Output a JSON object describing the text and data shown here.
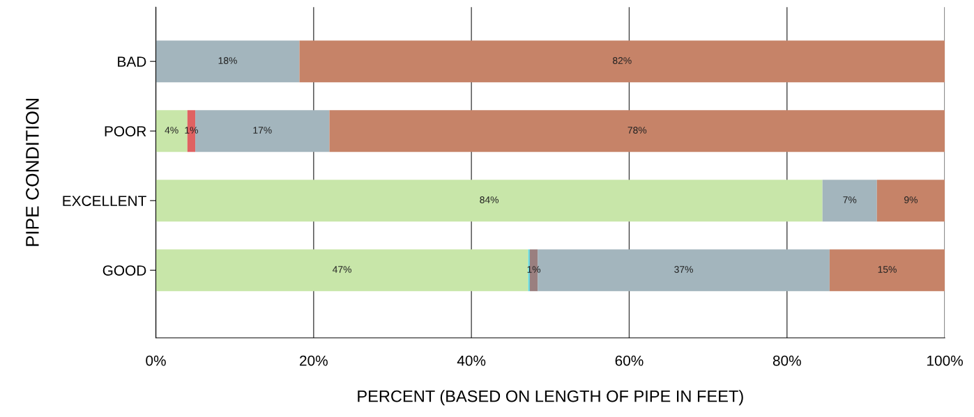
{
  "chart_data": {
    "type": "bar",
    "orientation": "horizontal",
    "stacked": true,
    "xlabel": "PERCENT (BASED ON LENGTH OF PIPE IN FEET)",
    "ylabel": "PIPE CONDITION",
    "categories": [
      "BAD",
      "POOR",
      "EXCELLENT",
      "GOOD"
    ],
    "xlim": [
      0,
      100
    ],
    "xticks": [
      {
        "value": 0,
        "label": "0%"
      },
      {
        "value": 20,
        "label": "20%"
      },
      {
        "value": 40,
        "label": "40%"
      },
      {
        "value": 60,
        "label": "60%"
      },
      {
        "value": 80,
        "label": "80%"
      },
      {
        "value": 100,
        "label": "100%"
      }
    ],
    "grid": "x",
    "legend": false,
    "series": [
      {
        "color": "#c8e6a9",
        "values": [
          null,
          4,
          84.5,
          47.2
        ],
        "value_labels": [
          null,
          "4%",
          "84%",
          "47%"
        ]
      },
      {
        "color": "#5ed8df",
        "values": [
          null,
          null,
          null,
          0.2
        ],
        "value_labels": [
          null,
          null,
          null,
          null
        ]
      },
      {
        "color": "#e06262",
        "values": [
          null,
          1,
          null,
          null
        ],
        "value_labels": [
          null,
          "1%",
          null,
          null
        ]
      },
      {
        "color": "#9a7f7f",
        "values": [
          null,
          null,
          null,
          1.0
        ],
        "value_labels": [
          null,
          null,
          null,
          "1%"
        ]
      },
      {
        "color": "#a3b5bd",
        "values": [
          18.2,
          17,
          6.9,
          37
        ],
        "value_labels": [
          "18%",
          "17%",
          "7%",
          "37%"
        ]
      },
      {
        "color": "#c68368",
        "values": [
          81.8,
          78,
          8.6,
          14.6
        ],
        "value_labels": [
          "82%",
          "78%",
          "9%",
          "15%"
        ]
      }
    ]
  }
}
